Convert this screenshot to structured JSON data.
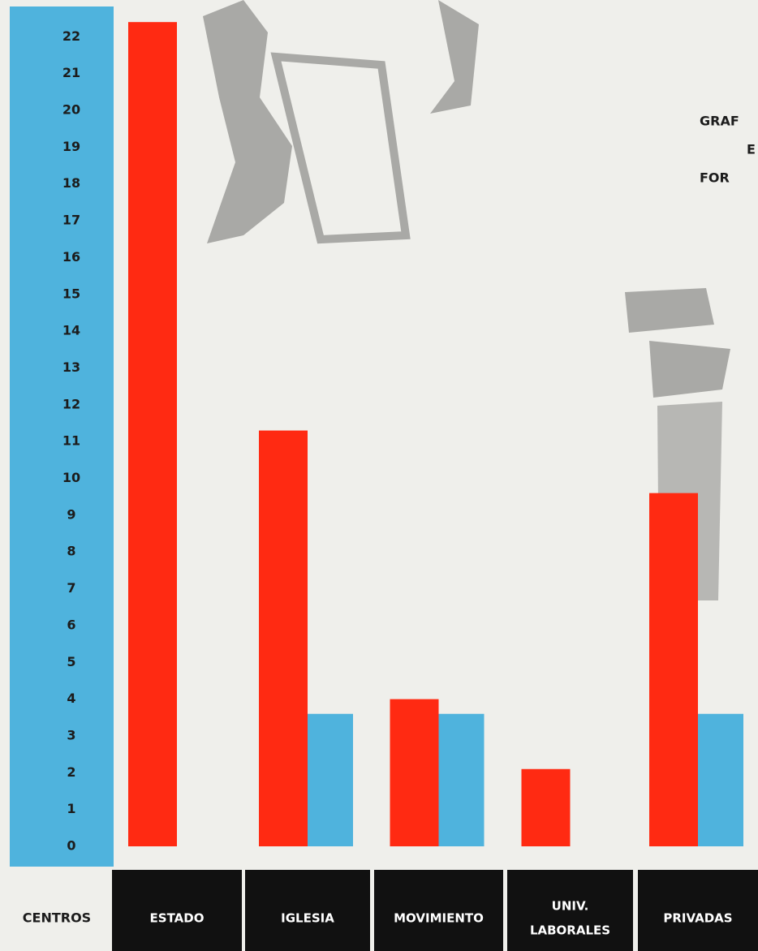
{
  "chart_data": {
    "type": "bar",
    "title_lines": [
      "GRAF",
      "E",
      "FOR"
    ],
    "axis_label": "CENTROS",
    "categories": [
      [
        "ESTADO"
      ],
      [
        "IGLESIA"
      ],
      [
        "MOVIMIENTO"
      ],
      [
        "UNIV.",
        "LABORALES"
      ],
      [
        "PRIVADAS"
      ]
    ],
    "series": [
      {
        "color": "#ff2a12",
        "values": [
          22.4,
          11.3,
          4.0,
          2.1,
          9.6
        ]
      },
      {
        "color": "#4fb3dd",
        "values": [
          null,
          3.6,
          3.6,
          null,
          3.6
        ]
      }
    ],
    "ylim": [
      0,
      23
    ],
    "yticks": [
      0,
      1,
      2,
      3,
      4,
      5,
      6,
      7,
      8,
      9,
      10,
      11,
      12,
      13,
      14,
      15,
      16,
      17,
      18,
      19,
      20,
      21,
      22
    ],
    "grid": false
  }
}
